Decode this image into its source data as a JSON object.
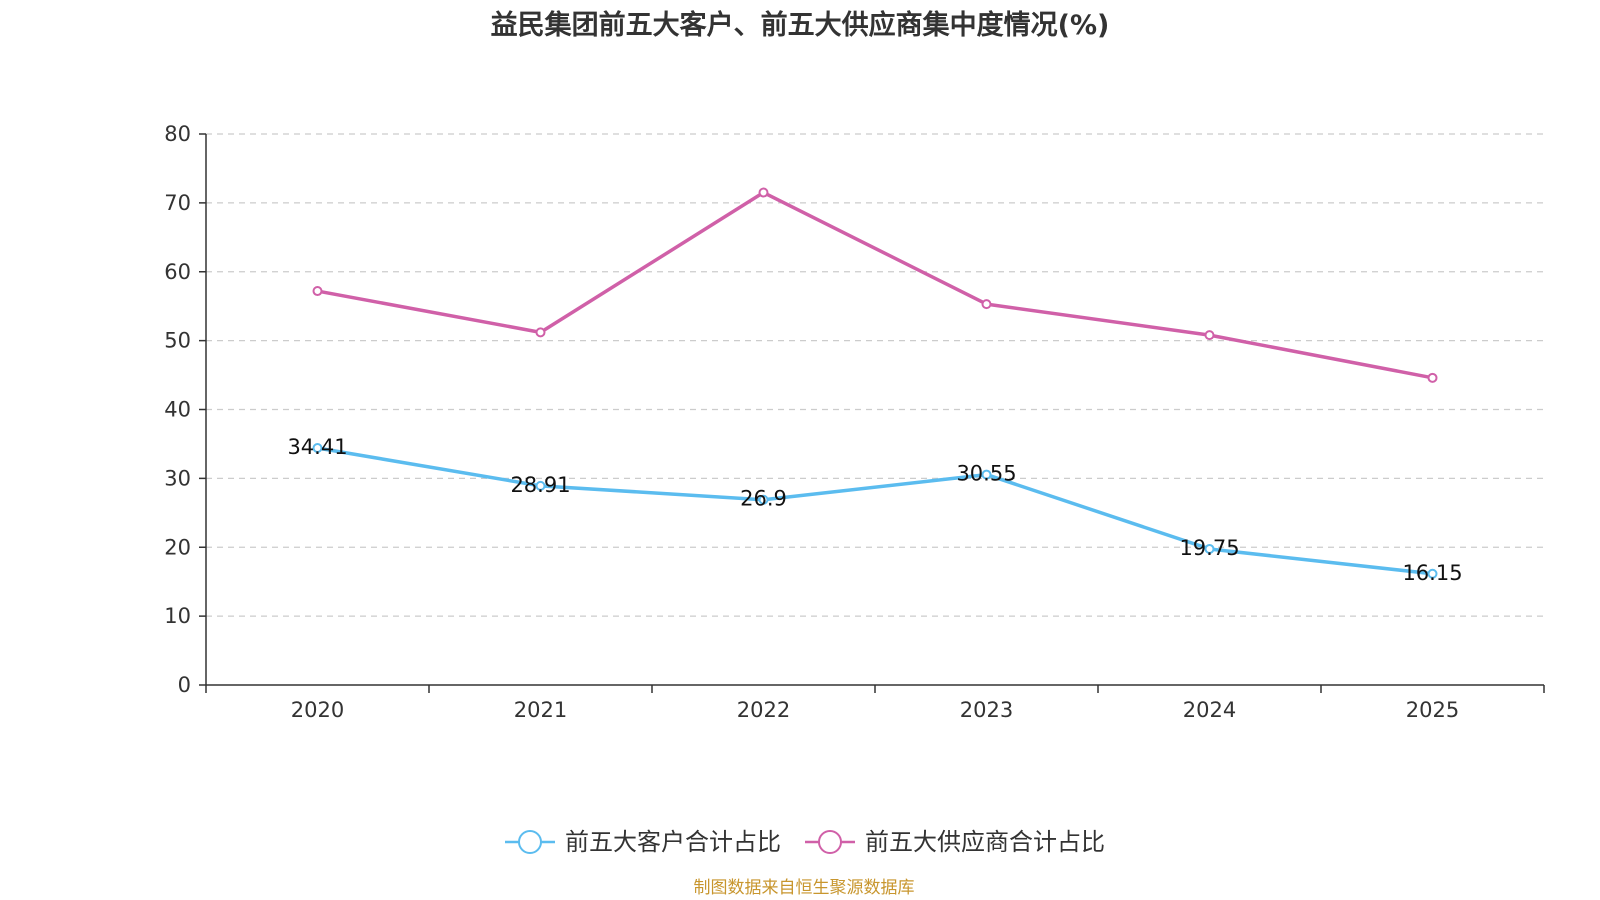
{
  "chart_data": {
    "type": "line",
    "title": "益民集团前五大客户、前五大供应商集中度情况(%)",
    "categories": [
      "2020",
      "2021",
      "2022",
      "2023",
      "2024",
      "2025"
    ],
    "ylim": [
      0,
      80
    ],
    "yticks": [
      "0",
      "10",
      "20",
      "30",
      "40",
      "50",
      "60",
      "70",
      "80"
    ],
    "grid": true,
    "legend_position": "bottom-center",
    "series": [
      {
        "name": "前五大客户合计占比",
        "color": "#5bbcef",
        "values": [
          34.41,
          28.91,
          26.9,
          30.55,
          19.75,
          16.15
        ],
        "labels": [
          "34.41",
          "28.91",
          "26.9",
          "30.55",
          "19.75",
          "16.15"
        ],
        "show_labels": true
      },
      {
        "name": "前五大供应商合计占比",
        "color": "#d060a8",
        "values": [
          57.2,
          51.2,
          71.5,
          55.3,
          50.8,
          44.6
        ],
        "show_labels": false
      }
    ],
    "source": "制图数据来自恒生聚源数据库"
  }
}
